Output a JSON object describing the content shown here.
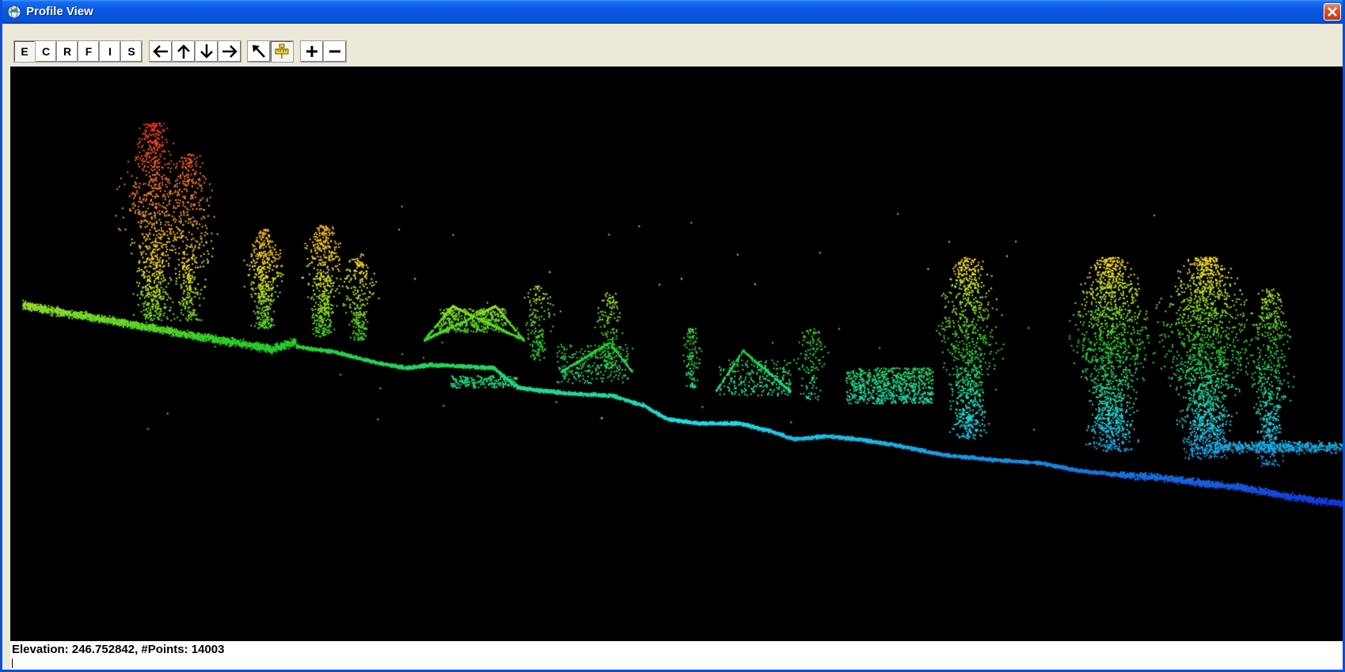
{
  "window": {
    "title": "Profile View",
    "title_icon": "globe-app-icon",
    "close_icon": "close-icon"
  },
  "toolbar": {
    "mode_buttons": [
      {
        "label": "E",
        "name": "mode-e-button",
        "pressed": true
      },
      {
        "label": "C",
        "name": "mode-c-button",
        "pressed": false
      },
      {
        "label": "R",
        "name": "mode-r-button",
        "pressed": false
      },
      {
        "label": "F",
        "name": "mode-f-button",
        "pressed": false
      },
      {
        "label": "I",
        "name": "mode-i-button",
        "pressed": false
      },
      {
        "label": "S",
        "name": "mode-s-button",
        "pressed": false
      }
    ],
    "pan_buttons": [
      {
        "icon": "arrow-left-icon",
        "name": "pan-left-button"
      },
      {
        "icon": "arrow-up-icon",
        "name": "pan-up-button"
      },
      {
        "icon": "arrow-down-icon",
        "name": "pan-down-button"
      },
      {
        "icon": "arrow-right-icon",
        "name": "pan-right-button"
      }
    ],
    "tool_buttons": [
      {
        "icon": "pointer-arrow-icon",
        "name": "select-tool-button",
        "pressed": false
      },
      {
        "icon": "measure-ruler-icon",
        "name": "measure-tool-button",
        "pressed": true
      }
    ],
    "zoom_buttons": [
      {
        "icon": "plus-icon",
        "name": "zoom-in-button"
      },
      {
        "icon": "minus-icon",
        "name": "zoom-out-button"
      }
    ]
  },
  "viewport": {
    "background": "#000000",
    "color_ramp": "elevation: red (high) → orange → yellow → green → cyan → blue (low)"
  },
  "status": {
    "text": "Elevation: 246.752842, #Points: 14003"
  },
  "colors": {
    "titlebar": "#0754d6",
    "window_frame": "#0b4fd8",
    "chrome": "#ece9d8",
    "close_button": "#d8501f"
  }
}
